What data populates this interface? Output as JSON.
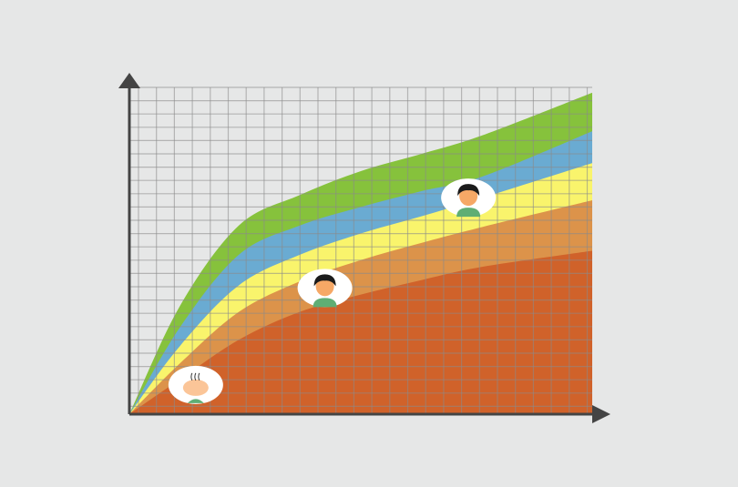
{
  "chart_data": {
    "type": "area",
    "stacked": true,
    "title": "",
    "xlabel": "",
    "ylabel": "",
    "xlim": [
      0,
      25.8
    ],
    "ylim": [
      0,
      24.6
    ],
    "grid": true,
    "x": [
      0,
      2.8,
      6.1,
      9.5,
      12.9,
      16.3,
      19.7,
      25.8
    ],
    "series": [
      {
        "color": "#d0622a",
        "values": [
          0,
          2.6,
          5.6,
          7.7,
          9.0,
          10.1,
          11.1,
          12.3
        ]
      },
      {
        "color": "#dc934a",
        "values": [
          0,
          3.8,
          7.7,
          10.0,
          11.6,
          12.9,
          14.1,
          16.1
        ]
      },
      {
        "color": "#f9f46c",
        "values": [
          0,
          5.1,
          9.7,
          12.0,
          13.6,
          14.9,
          16.3,
          18.9
        ]
      },
      {
        "color": "#6aabd2",
        "values": [
          0,
          6.5,
          12.0,
          14.2,
          15.6,
          16.8,
          17.9,
          21.3
        ]
      },
      {
        "color": "#86c23c",
        "values": [
          0,
          8.1,
          14.2,
          16.5,
          18.3,
          19.6,
          21.0,
          24.2
        ]
      }
    ],
    "markers": [
      {
        "icon": "baby-avatar-icon",
        "x": 3.7,
        "y": 2.2
      },
      {
        "icon": "child-avatar-icon",
        "x": 10.9,
        "y": 9.5
      },
      {
        "icon": "teen-avatar-icon",
        "x": 18.9,
        "y": 16.3
      }
    ],
    "axis_color": "#444444",
    "background": "#e6e7e7"
  }
}
